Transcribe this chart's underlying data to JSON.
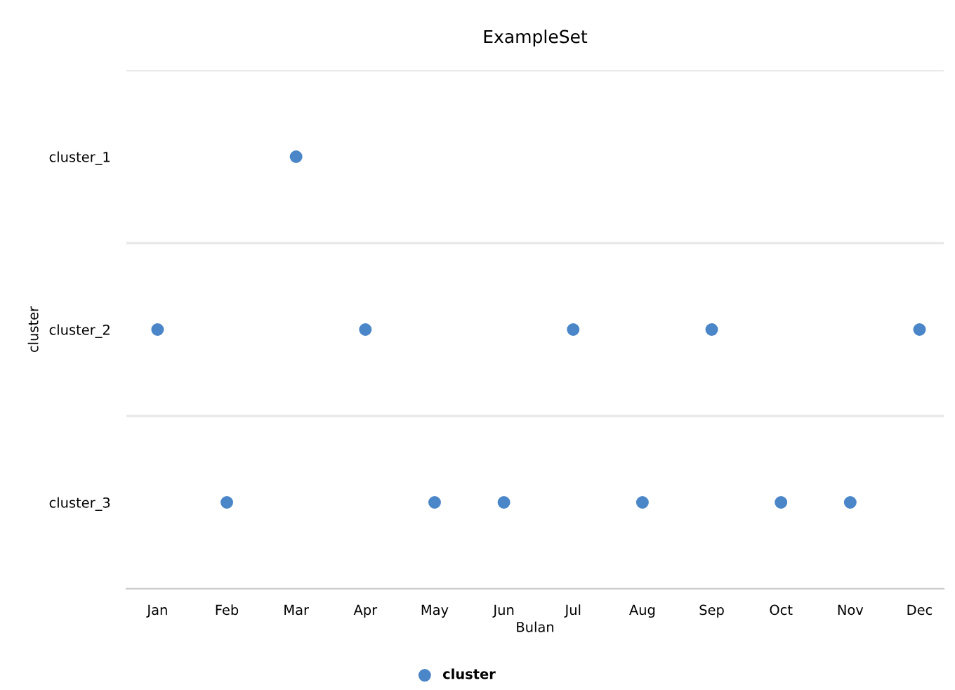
{
  "chart_data": {
    "type": "scatter",
    "title": "ExampleSet",
    "xlabel": "Bulan",
    "ylabel": "cluster",
    "categories": [
      "Jan",
      "Feb",
      "Mar",
      "Apr",
      "May",
      "Jun",
      "Jul",
      "Aug",
      "Sep",
      "Oct",
      "Nov",
      "Dec"
    ],
    "series": [
      {
        "name": "cluster",
        "color": "#4a86c8",
        "values": [
          2,
          3,
          1,
          2,
          3,
          3,
          2,
          3,
          2,
          3,
          3,
          2
        ]
      }
    ],
    "ylim": [
      3.5,
      0.5
    ],
    "yticks": [
      {
        "value": 0.5,
        "label": null
      },
      {
        "value": 1,
        "label": "cluster_1"
      },
      {
        "value": 1.5,
        "label": null
      },
      {
        "value": 2,
        "label": "cluster_2"
      },
      {
        "value": 2.5,
        "label": null
      },
      {
        "value": 3,
        "label": "cluster_3"
      },
      {
        "value": 3.5,
        "label": null
      }
    ],
    "grid": "y",
    "legend": "bottom",
    "marker": "circle"
  }
}
